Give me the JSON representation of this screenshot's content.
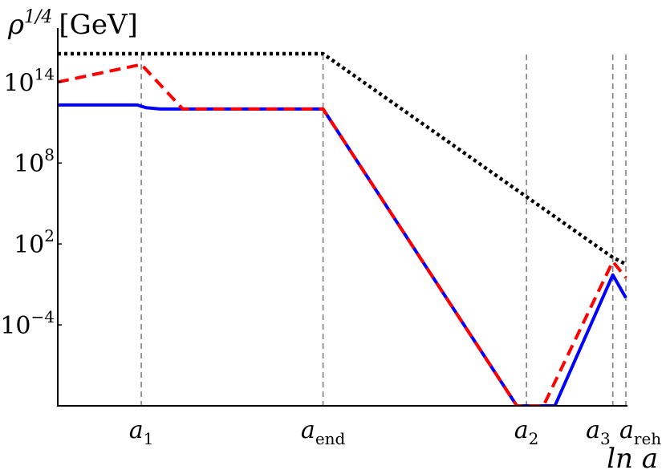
{
  "chart_data": {
    "type": "line",
    "ylabel": {
      "sym": "ρ",
      "exp": "1/4",
      "unit": "[GeV]"
    },
    "xlabel": "ln a",
    "y_scale": "log10",
    "ylim": [
      -10,
      18
    ],
    "xlim": [
      0,
      100
    ],
    "y_ticks": [
      {
        "value": 14,
        "base": "10",
        "exp": "14"
      },
      {
        "value": 8,
        "base": "10",
        "exp": "8"
      },
      {
        "value": 2,
        "base": "10",
        "exp": "2"
      },
      {
        "value": -4,
        "base": "10",
        "exp": "−4"
      }
    ],
    "x_ticks": [
      {
        "name": "a1",
        "x": 14.7,
        "base": "a",
        "sub": "1"
      },
      {
        "name": "aend",
        "x": 46.7,
        "base": "a",
        "sub": "end"
      },
      {
        "name": "a2",
        "x": 82.5,
        "base": "a",
        "sub": "2"
      },
      {
        "name": "a3",
        "x": 97.7,
        "base": "a",
        "sub": "3"
      },
      {
        "name": "areh",
        "x": 100,
        "base": "a",
        "sub": "reh"
      }
    ],
    "series": [
      {
        "key": "black-dotted",
        "color": "#000000",
        "style": "dotted",
        "points": [
          [
            0,
            16.1
          ],
          [
            46.7,
            16.1
          ],
          [
            97.7,
            1.0
          ],
          [
            100,
            0.5
          ]
        ]
      },
      {
        "key": "red-dashed",
        "color": "#ff0000",
        "style": "dashed",
        "points": [
          [
            0,
            14.0
          ],
          [
            14.7,
            15.3
          ],
          [
            22.0,
            12.0
          ],
          [
            46.7,
            12.0
          ],
          [
            80.8,
            -10
          ],
          [
            85.5,
            -10
          ],
          [
            97.7,
            0.7
          ],
          [
            100,
            -0.5
          ]
        ]
      },
      {
        "key": "blue-solid",
        "color": "#0000ff",
        "style": "solid",
        "points": [
          [
            0,
            12.3
          ],
          [
            14.0,
            12.3
          ],
          [
            15.5,
            12.1
          ],
          [
            18.0,
            12.0
          ],
          [
            46.7,
            12.0
          ],
          [
            80.8,
            -10
          ],
          [
            87.5,
            -10
          ],
          [
            97.7,
            -0.3
          ],
          [
            100,
            -2.0
          ]
        ]
      }
    ]
  }
}
